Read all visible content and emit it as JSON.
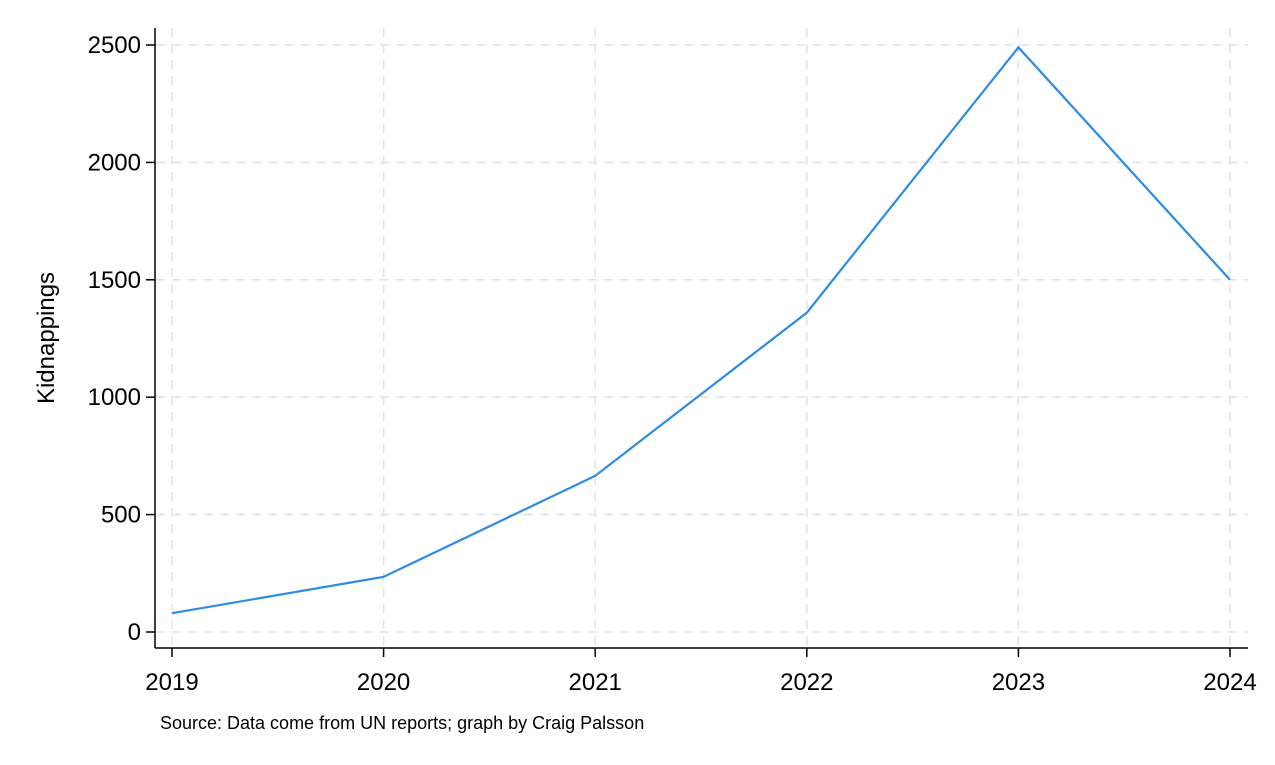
{
  "chart_data": {
    "type": "line",
    "x": [
      2019,
      2020,
      2021,
      2022,
      2023,
      2024
    ],
    "series": [
      {
        "values": [
          80,
          235,
          665,
          1360,
          2490,
          1500
        ],
        "color": "#2b8be6"
      }
    ],
    "title": "",
    "xlabel": "",
    "ylabel": "Kidnappings",
    "xlim": [
      2019,
      2024
    ],
    "ylim": [
      0,
      2500
    ],
    "xticks": [
      2019,
      2020,
      2021,
      2022,
      2023,
      2024
    ],
    "yticks": [
      0,
      500,
      1000,
      1500,
      2000,
      2500
    ],
    "grid": true,
    "note": "Source: Data come from UN reports; graph by Craig Palsson"
  }
}
